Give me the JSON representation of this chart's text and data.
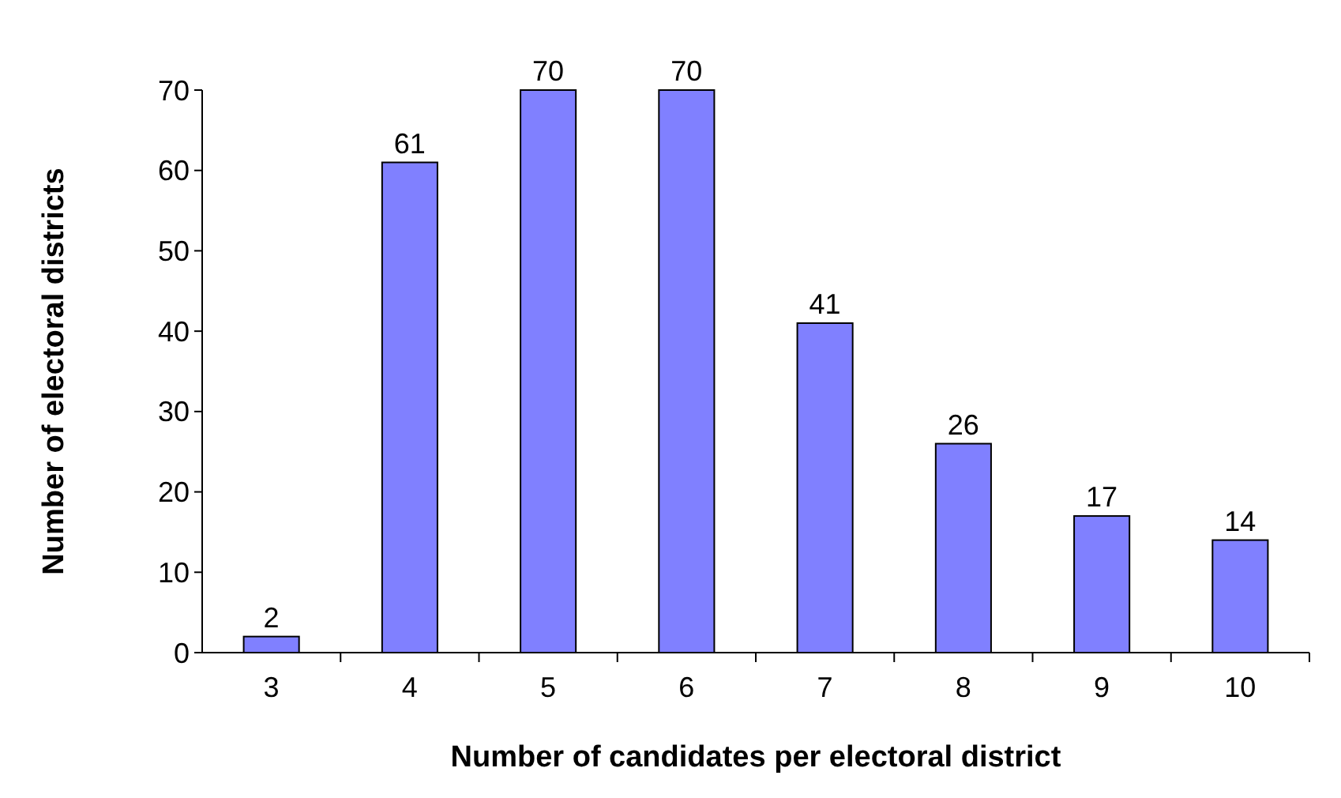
{
  "chart_data": {
    "type": "bar",
    "xlabel": "Number of candidates per electoral district",
    "ylabel": "Number of electoral districts",
    "categories": [
      "3",
      "4",
      "5",
      "6",
      "7",
      "8",
      "9",
      "10"
    ],
    "values": [
      2,
      61,
      70,
      70,
      41,
      26,
      17,
      14
    ],
    "color": "#8080ff",
    "ylim": [
      0,
      70
    ],
    "yticks": [
      0,
      10,
      20,
      30,
      40,
      50,
      60,
      70
    ],
    "data_labels": true,
    "grid": false
  }
}
